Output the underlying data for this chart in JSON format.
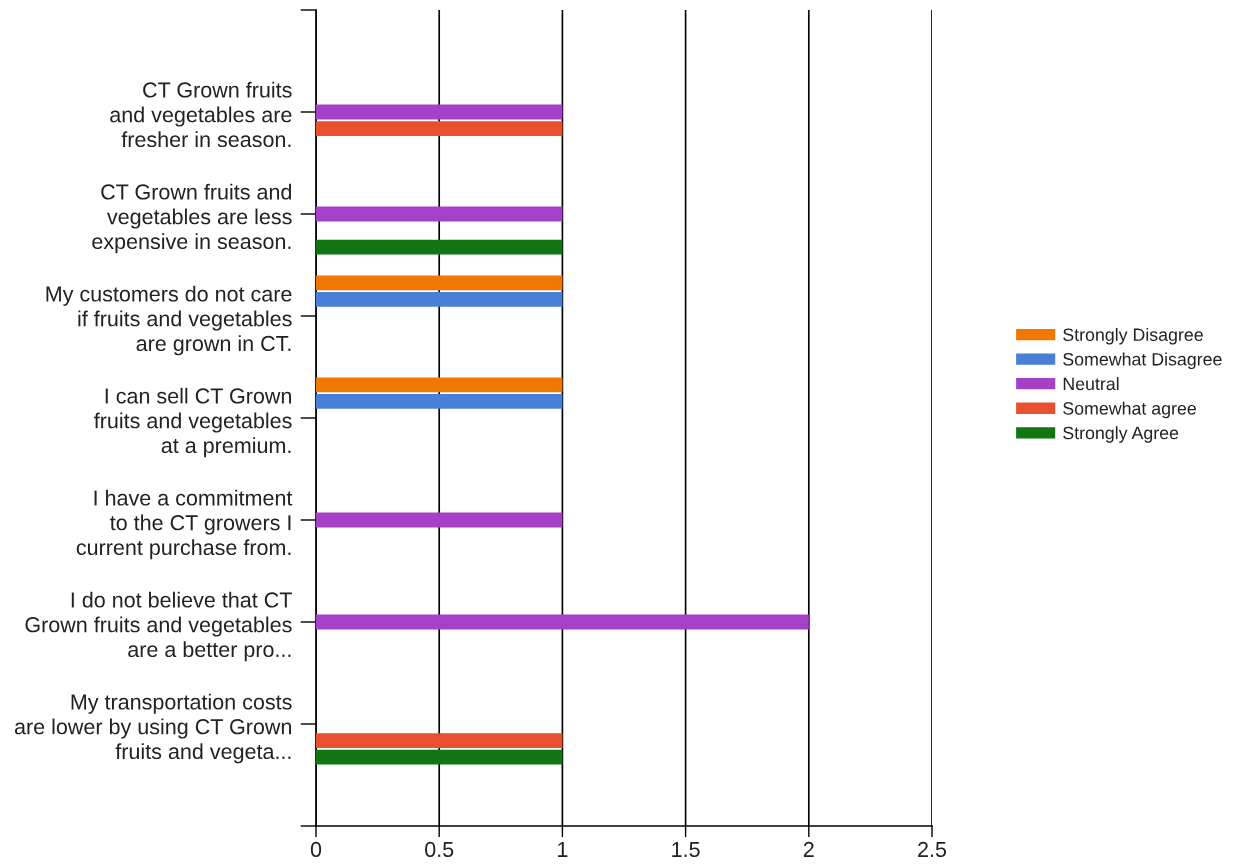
{
  "chart_data": {
    "type": "bar",
    "orientation": "horizontal",
    "categories": [
      "CT Grown fruits\nand vegetables are\nfresher in season.",
      "CT Grown fruits and\nvegetables are less\nexpensive in season.",
      "My customers do not care\nif fruits and vegetables\nare grown in CT.",
      "I can sell CT Grown\nfruits and vegetables\nat a premium.",
      "I have a commitment\nto the CT growers I\ncurrent purchase from.",
      "I do not believe that CT\nGrown fruits and vegetables\nare a better pro...",
      "My transportation costs\nare lower by using CT Grown\nfruits and vegeta..."
    ],
    "xlim": [
      0,
      2.5
    ],
    "xticks": [
      0,
      0.5,
      1,
      1.5,
      2,
      2.5
    ],
    "grid": "x",
    "legend": "right",
    "series": [
      {
        "name": "Strongly Disagree",
        "color": "#f07800",
        "values": [
          null,
          null,
          1,
          1,
          null,
          null,
          null
        ]
      },
      {
        "name": "Somewhat Disagree",
        "color": "#4a7fd8",
        "values": [
          null,
          null,
          1,
          1,
          null,
          null,
          null
        ]
      },
      {
        "name": "Neutral",
        "color": "#a540c8",
        "values": [
          1,
          1,
          null,
          null,
          1,
          2,
          null
        ]
      },
      {
        "name": "Somewhat agree",
        "color": "#ea4f2f",
        "values": [
          1,
          null,
          null,
          null,
          null,
          null,
          1
        ]
      },
      {
        "name": "Strongly Agree",
        "color": "#127512",
        "values": [
          null,
          1,
          null,
          null,
          null,
          null,
          1
        ]
      }
    ]
  }
}
